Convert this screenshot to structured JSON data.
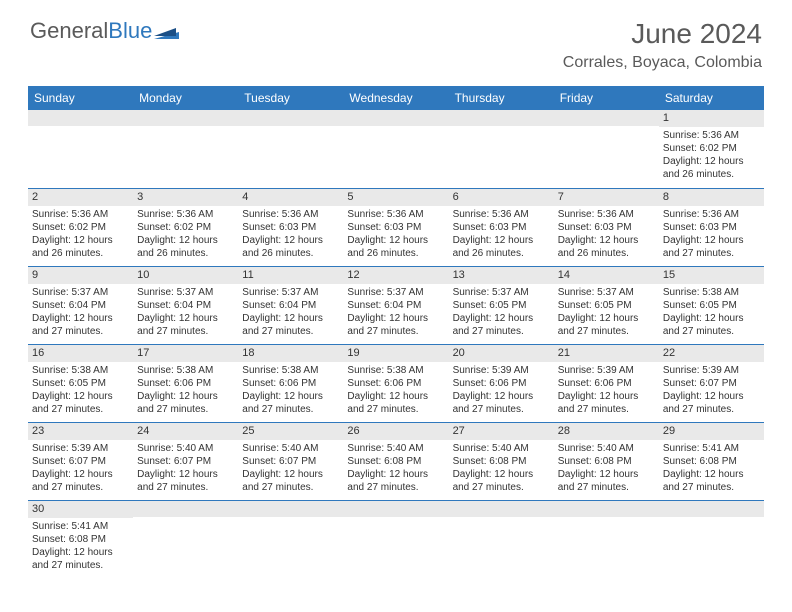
{
  "logo": {
    "text1": "General",
    "text2": "Blue"
  },
  "title": "June 2024",
  "location": "Corrales, Boyaca, Colombia",
  "colors": {
    "header_bg": "#2f78bd",
    "header_fg": "#ffffff",
    "daynum_bg": "#e9e9e9",
    "text": "#333333",
    "row_border": "#2f78bd",
    "logo_gray": "#5a5a5a",
    "logo_blue": "#2f78bd"
  },
  "day_headers": [
    "Sunday",
    "Monday",
    "Tuesday",
    "Wednesday",
    "Thursday",
    "Friday",
    "Saturday"
  ],
  "weeks": [
    [
      {
        "n": "",
        "sr": "",
        "ss": "",
        "dl": ""
      },
      {
        "n": "",
        "sr": "",
        "ss": "",
        "dl": ""
      },
      {
        "n": "",
        "sr": "",
        "ss": "",
        "dl": ""
      },
      {
        "n": "",
        "sr": "",
        "ss": "",
        "dl": ""
      },
      {
        "n": "",
        "sr": "",
        "ss": "",
        "dl": ""
      },
      {
        "n": "",
        "sr": "",
        "ss": "",
        "dl": ""
      },
      {
        "n": "1",
        "sr": "5:36 AM",
        "ss": "6:02 PM",
        "dl": "12 hours and 26 minutes."
      }
    ],
    [
      {
        "n": "2",
        "sr": "5:36 AM",
        "ss": "6:02 PM",
        "dl": "12 hours and 26 minutes."
      },
      {
        "n": "3",
        "sr": "5:36 AM",
        "ss": "6:02 PM",
        "dl": "12 hours and 26 minutes."
      },
      {
        "n": "4",
        "sr": "5:36 AM",
        "ss": "6:03 PM",
        "dl": "12 hours and 26 minutes."
      },
      {
        "n": "5",
        "sr": "5:36 AM",
        "ss": "6:03 PM",
        "dl": "12 hours and 26 minutes."
      },
      {
        "n": "6",
        "sr": "5:36 AM",
        "ss": "6:03 PM",
        "dl": "12 hours and 26 minutes."
      },
      {
        "n": "7",
        "sr": "5:36 AM",
        "ss": "6:03 PM",
        "dl": "12 hours and 26 minutes."
      },
      {
        "n": "8",
        "sr": "5:36 AM",
        "ss": "6:03 PM",
        "dl": "12 hours and 27 minutes."
      }
    ],
    [
      {
        "n": "9",
        "sr": "5:37 AM",
        "ss": "6:04 PM",
        "dl": "12 hours and 27 minutes."
      },
      {
        "n": "10",
        "sr": "5:37 AM",
        "ss": "6:04 PM",
        "dl": "12 hours and 27 minutes."
      },
      {
        "n": "11",
        "sr": "5:37 AM",
        "ss": "6:04 PM",
        "dl": "12 hours and 27 minutes."
      },
      {
        "n": "12",
        "sr": "5:37 AM",
        "ss": "6:04 PM",
        "dl": "12 hours and 27 minutes."
      },
      {
        "n": "13",
        "sr": "5:37 AM",
        "ss": "6:05 PM",
        "dl": "12 hours and 27 minutes."
      },
      {
        "n": "14",
        "sr": "5:37 AM",
        "ss": "6:05 PM",
        "dl": "12 hours and 27 minutes."
      },
      {
        "n": "15",
        "sr": "5:38 AM",
        "ss": "6:05 PM",
        "dl": "12 hours and 27 minutes."
      }
    ],
    [
      {
        "n": "16",
        "sr": "5:38 AM",
        "ss": "6:05 PM",
        "dl": "12 hours and 27 minutes."
      },
      {
        "n": "17",
        "sr": "5:38 AM",
        "ss": "6:06 PM",
        "dl": "12 hours and 27 minutes."
      },
      {
        "n": "18",
        "sr": "5:38 AM",
        "ss": "6:06 PM",
        "dl": "12 hours and 27 minutes."
      },
      {
        "n": "19",
        "sr": "5:38 AM",
        "ss": "6:06 PM",
        "dl": "12 hours and 27 minutes."
      },
      {
        "n": "20",
        "sr": "5:39 AM",
        "ss": "6:06 PM",
        "dl": "12 hours and 27 minutes."
      },
      {
        "n": "21",
        "sr": "5:39 AM",
        "ss": "6:06 PM",
        "dl": "12 hours and 27 minutes."
      },
      {
        "n": "22",
        "sr": "5:39 AM",
        "ss": "6:07 PM",
        "dl": "12 hours and 27 minutes."
      }
    ],
    [
      {
        "n": "23",
        "sr": "5:39 AM",
        "ss": "6:07 PM",
        "dl": "12 hours and 27 minutes."
      },
      {
        "n": "24",
        "sr": "5:40 AM",
        "ss": "6:07 PM",
        "dl": "12 hours and 27 minutes."
      },
      {
        "n": "25",
        "sr": "5:40 AM",
        "ss": "6:07 PM",
        "dl": "12 hours and 27 minutes."
      },
      {
        "n": "26",
        "sr": "5:40 AM",
        "ss": "6:08 PM",
        "dl": "12 hours and 27 minutes."
      },
      {
        "n": "27",
        "sr": "5:40 AM",
        "ss": "6:08 PM",
        "dl": "12 hours and 27 minutes."
      },
      {
        "n": "28",
        "sr": "5:40 AM",
        "ss": "6:08 PM",
        "dl": "12 hours and 27 minutes."
      },
      {
        "n": "29",
        "sr": "5:41 AM",
        "ss": "6:08 PM",
        "dl": "12 hours and 27 minutes."
      }
    ],
    [
      {
        "n": "30",
        "sr": "5:41 AM",
        "ss": "6:08 PM",
        "dl": "12 hours and 27 minutes."
      },
      {
        "n": "",
        "sr": "",
        "ss": "",
        "dl": ""
      },
      {
        "n": "",
        "sr": "",
        "ss": "",
        "dl": ""
      },
      {
        "n": "",
        "sr": "",
        "ss": "",
        "dl": ""
      },
      {
        "n": "",
        "sr": "",
        "ss": "",
        "dl": ""
      },
      {
        "n": "",
        "sr": "",
        "ss": "",
        "dl": ""
      },
      {
        "n": "",
        "sr": "",
        "ss": "",
        "dl": ""
      }
    ]
  ],
  "labels": {
    "sunrise": "Sunrise: ",
    "sunset": "Sunset: ",
    "daylight": "Daylight: "
  }
}
